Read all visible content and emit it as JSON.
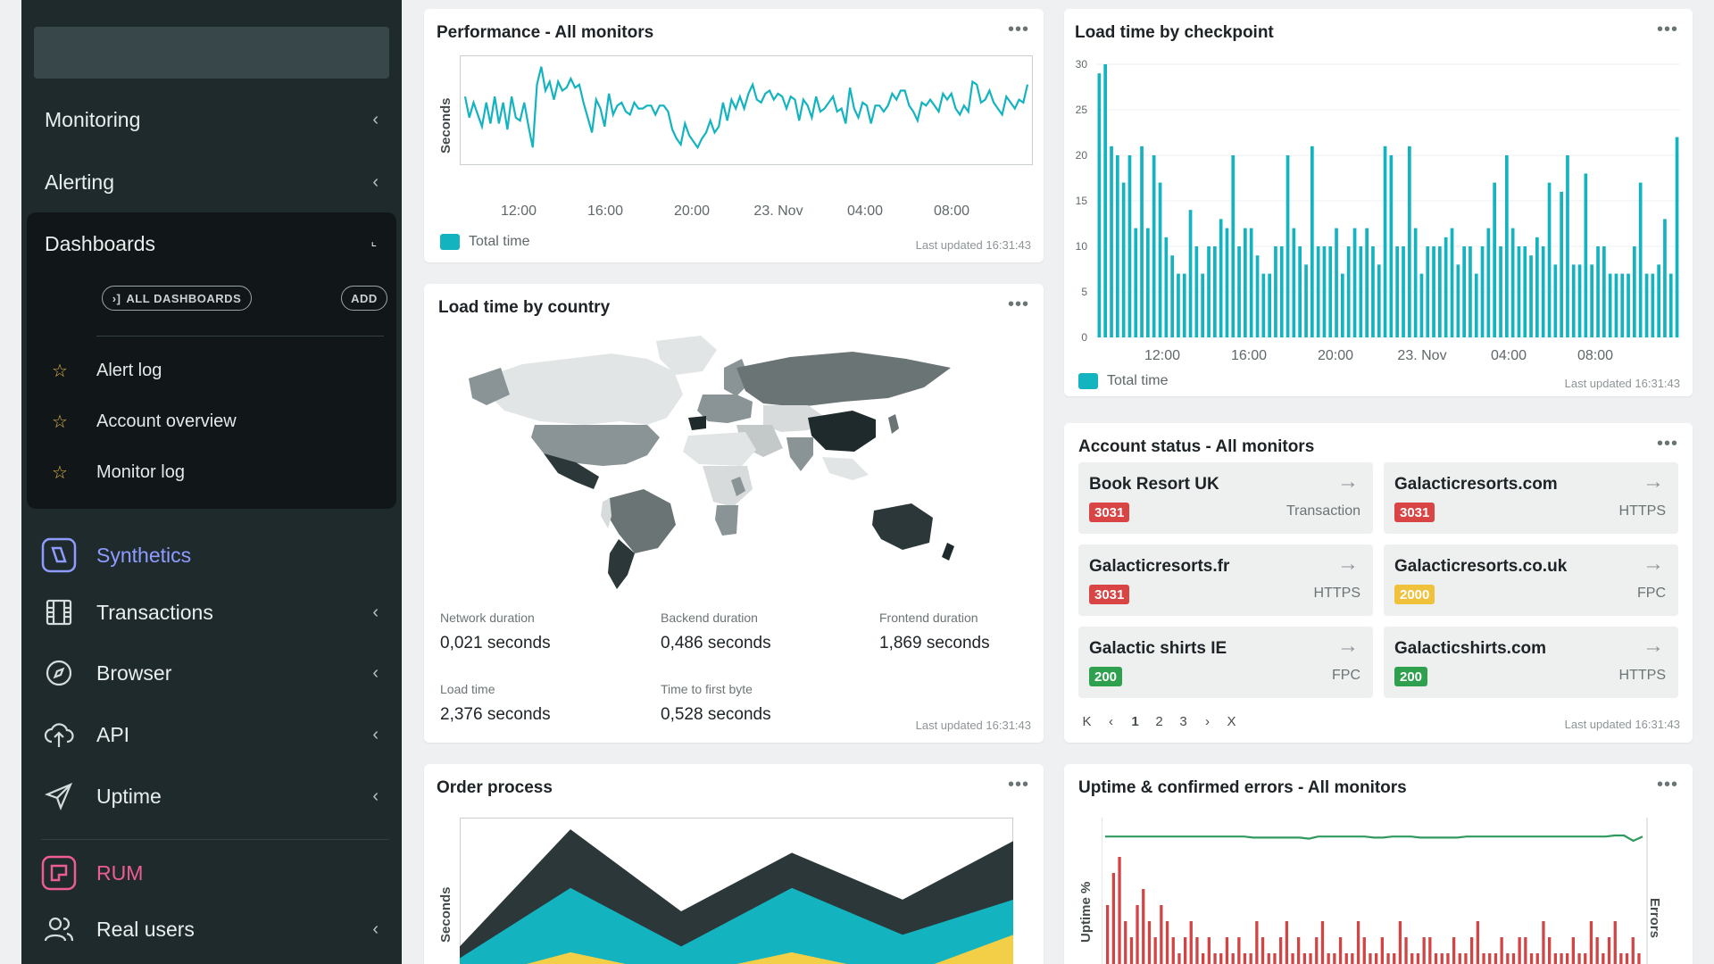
{
  "sidebar": {
    "nav": [
      {
        "label": "Monitoring"
      },
      {
        "label": "Alerting"
      }
    ],
    "dashboards": {
      "title": "Dashboards",
      "all_button": "ALL DASHBOARDS",
      "add_button": "ADD",
      "favorites": [
        {
          "label": "Alert log"
        },
        {
          "label": "Account overview"
        },
        {
          "label": "Monitor log"
        }
      ]
    },
    "synthetics": {
      "label": "Synthetics",
      "color": "#8f9cff"
    },
    "items": [
      {
        "label": "Transactions",
        "icon": "film-icon"
      },
      {
        "label": "Browser",
        "icon": "compass-icon"
      },
      {
        "label": "API",
        "icon": "cloud-upload-icon"
      },
      {
        "label": "Uptime",
        "icon": "send-icon"
      }
    ],
    "rum": {
      "label": "RUM",
      "color": "#ee5c96"
    },
    "rum_items": [
      {
        "label": "Real users",
        "icon": "users-icon"
      }
    ]
  },
  "performance": {
    "title": "Performance - All monitors",
    "ylabel": "Seconds",
    "legend": "Total time",
    "updated": "Last updated 16:31:43"
  },
  "checkpoint": {
    "title": "Load time by checkpoint",
    "legend": "Total time",
    "updated": "Last updated 16:31:43"
  },
  "country": {
    "title": "Load time by country",
    "stats": [
      {
        "label": "Network duration",
        "value": "0,021 seconds"
      },
      {
        "label": "Backend duration",
        "value": "0,486 seconds"
      },
      {
        "label": "Frontend duration",
        "value": "1,869 seconds"
      },
      {
        "label": "Load time",
        "value": "2,376 seconds"
      },
      {
        "label": "Time to first byte",
        "value": "0,528 seconds"
      }
    ],
    "updated": "Last updated 16:31:43"
  },
  "account": {
    "title": "Account status - All monitors",
    "tiles": [
      {
        "name": "Book Resort UK",
        "code": "3031",
        "type": "Transaction",
        "color": "#d94444"
      },
      {
        "name": "Galacticresorts.com",
        "code": "3031",
        "type": "HTTPS",
        "color": "#d94444"
      },
      {
        "name": "Galacticresorts.fr",
        "code": "3031",
        "type": "HTTPS",
        "color": "#d94444"
      },
      {
        "name": "Galacticresorts.co.uk",
        "code": "2000",
        "type": "FPC",
        "color": "#f0c23c"
      },
      {
        "name": "Galactic shirts IE",
        "code": "200",
        "type": "FPC",
        "color": "#2fa14e"
      },
      {
        "name": "Galacticshirts.com",
        "code": "200",
        "type": "HTTPS",
        "color": "#2fa14e"
      }
    ],
    "pager": {
      "first": "K",
      "prev": "‹",
      "pages": [
        "1",
        "2",
        "3"
      ],
      "next": "›",
      "last": "X"
    },
    "updated": "Last updated 16:31:43"
  },
  "order": {
    "title": "Order process",
    "ylabel": "Seconds"
  },
  "uptime": {
    "title": "Uptime & confirmed errors - All monitors",
    "ylabel_left": "Uptime %",
    "ylabel_right": "Errors"
  },
  "chart_data": [
    {
      "id": "performance",
      "type": "line",
      "xlabel": "",
      "ylabel": "Seconds",
      "x_ticks": [
        "12:00",
        "16:00",
        "20:00",
        "23. Nov",
        "04:00",
        "08:00"
      ],
      "series": [
        {
          "name": "Total time",
          "color": "#14b3c0",
          "values": [
            2.2,
            1.5,
            2.0,
            1.6,
            1.2,
            2.0,
            1.3,
            2.2,
            1.3,
            2.0,
            1.1,
            2.2,
            1.5,
            1.4,
            2.0,
            1.2,
            0.5,
            2.6,
            3.2,
            2.4,
            2.7,
            2.1,
            2.7,
            2.4,
            2.5,
            2.8,
            2.5,
            2.6,
            2.0,
            1.5,
            1.0,
            2.1,
            1.8,
            1.2,
            2.3,
            1.6,
            1.9,
            2.0,
            1.7,
            1.6,
            2.0,
            1.8,
            1.8,
            1.9,
            1.9,
            1.6,
            1.9,
            1.9,
            1.7,
            1.1,
            0.8,
            0.6,
            1.3,
            0.9,
            0.7,
            0.5,
            0.8,
            1.0,
            1.4,
            1.0,
            1.2,
            2.0,
            1.4,
            2.1,
            1.8,
            2.2,
            1.8,
            2.3,
            2.6,
            2.1,
            2.0,
            2.3,
            2.4,
            2.1,
            2.3,
            2.2,
            1.8,
            2.2,
            2.1,
            1.4,
            2.1,
            1.9,
            1.5,
            2.2,
            1.7,
            1.8,
            2.0,
            2.2,
            1.7,
            1.8,
            1.3,
            2.5,
            1.8,
            1.5,
            2.0,
            1.9,
            1.3,
            1.9,
            1.9,
            1.7,
            1.9,
            2.3,
            2.1,
            2.4,
            2.4,
            1.9,
            1.7,
            1.4,
            2.0,
            1.9,
            2.1,
            1.9,
            1.7,
            2.3,
            2.1,
            2.3,
            1.8,
            1.6,
            1.9,
            1.7,
            2.7,
            2.6,
            2.0,
            2.1,
            2.4,
            2.0,
            1.8,
            1.6,
            2.2,
            2.0,
            1.8,
            2.1,
            2.0,
            2.6
          ]
        }
      ]
    },
    {
      "id": "checkpoint",
      "type": "bar",
      "ylim": [
        0,
        30
      ],
      "y_ticks": [
        0,
        5,
        10,
        15,
        20,
        25,
        30
      ],
      "x_ticks": [
        "12:00",
        "16:00",
        "20:00",
        "23. Nov",
        "04:00",
        "08:00"
      ],
      "series": [
        {
          "name": "Total time",
          "color": "#14b3c0",
          "values": [
            29,
            30,
            21,
            20,
            17,
            20,
            12,
            21,
            12,
            20,
            17,
            11,
            9,
            7,
            7,
            14,
            10,
            7,
            10,
            10,
            13,
            12,
            20,
            10,
            12,
            12,
            9,
            7,
            7,
            10,
            10,
            20,
            12,
            10,
            8,
            21,
            10,
            10,
            10,
            12,
            7,
            10,
            12,
            10,
            12,
            10,
            8,
            21,
            20,
            10,
            10,
            21,
            12,
            7,
            10,
            10,
            10,
            11,
            12,
            8,
            10,
            10,
            7,
            10,
            12,
            17,
            10,
            20,
            12,
            10,
            10,
            9,
            11,
            10,
            17,
            8,
            16,
            20,
            8,
            8,
            18,
            8,
            10,
            10,
            7,
            7,
            7,
            7,
            10,
            17,
            7,
            7,
            8,
            13,
            7,
            22
          ]
        }
      ]
    },
    {
      "id": "order",
      "type": "area",
      "ylabel": "Seconds",
      "series": [
        {
          "color": "#2b3738",
          "values": [
            1.0,
            3.0,
            1.6,
            2.6,
            1.8,
            2.8
          ]
        },
        {
          "color": "#14b3c0",
          "values": [
            0.8,
            2.0,
            1.0,
            2.0,
            1.2,
            1.8
          ]
        },
        {
          "color": "#f2cf46",
          "values": [
            0.4,
            0.9,
            0.5,
            0.9,
            0.5,
            1.2
          ]
        }
      ]
    },
    {
      "id": "uptime",
      "type": "bar",
      "ylabel": "Uptime %",
      "y2label": "Errors",
      "series": [
        {
          "name": "Uptime %",
          "type": "line",
          "color": "#2f9a5e",
          "values": [
            99.6,
            99.6,
            99.6,
            99.6,
            99.6,
            99.6,
            99.6,
            99.6,
            99.6,
            99.6,
            99.6,
            99.6,
            99.6,
            99.6,
            99.6,
            99.6,
            99.5,
            99.5,
            99.5,
            99.5,
            99.5,
            99.5,
            99.4,
            99.6,
            99.6,
            99.6,
            99.6,
            99.6,
            99.6,
            99.5,
            99.5,
            99.6,
            99.6,
            99.6,
            99.5,
            99.5,
            99.5,
            99.5,
            99.5,
            99.6,
            99.6,
            99.6,
            99.6,
            99.6,
            99.6,
            99.6,
            99.6,
            99.6,
            99.6,
            99.6,
            99.6,
            99.6,
            99.6,
            99.6,
            99.6,
            99.7,
            99.7,
            99.2,
            99.6
          ]
        },
        {
          "name": "Errors",
          "color": "#d24545",
          "values": [
            4,
            6,
            7,
            3,
            2,
            4,
            5,
            3,
            2,
            4,
            3,
            2,
            1,
            2,
            3,
            2,
            1,
            2,
            1,
            1,
            2,
            1,
            2,
            1,
            1,
            3,
            2,
            1,
            1,
            2,
            3,
            1,
            2,
            1,
            1,
            2,
            3,
            1,
            1,
            2,
            1,
            1,
            3,
            2,
            1,
            1,
            2,
            1,
            1,
            3,
            2,
            1,
            1,
            2,
            2,
            1,
            1,
            1,
            2,
            1,
            1,
            2,
            3,
            1,
            1,
            1,
            2,
            1,
            1,
            2,
            2,
            1,
            1,
            3,
            2,
            1,
            1,
            1,
            2,
            1,
            1,
            3,
            2,
            1,
            2,
            3,
            1,
            1,
            2,
            1
          ]
        }
      ]
    }
  ]
}
